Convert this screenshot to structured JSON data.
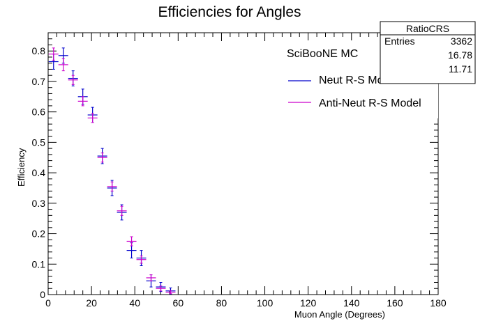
{
  "chart_data": {
    "type": "scatter",
    "title": "Efficiencies for Angles",
    "xlabel": "Muon Angle (Degrees)",
    "ylabel": "Efficiency",
    "xlim": [
      0,
      180
    ],
    "ylim": [
      0,
      0.86
    ],
    "xticks": [
      0,
      20,
      40,
      60,
      80,
      100,
      120,
      140,
      160,
      180
    ],
    "yticks": [
      0,
      0.1,
      0.2,
      0.3,
      0.4,
      0.5,
      0.6,
      0.7,
      0.8
    ],
    "ytick_labels": [
      "0",
      "0.1",
      "0.2",
      "0.3",
      "0.4",
      "0.5",
      "0.6",
      "0.7",
      "0.8"
    ],
    "grid": false,
    "legend_position": "top-right",
    "legend": {
      "header": "SciBooNE MC",
      "entries": [
        "Neut R-S Model",
        "Anti-Neut R-S Model"
      ]
    },
    "stats_box": {
      "title": "RatioCRS",
      "rows": [
        {
          "label": "Entries",
          "value": "3362"
        },
        {
          "label": "",
          "value": "16.78"
        },
        {
          "label": "",
          "value": "11.71"
        }
      ]
    },
    "series": [
      {
        "name": "Neut R-S Model",
        "color": "#0000cc",
        "x": [
          2.5,
          7,
          11.5,
          16,
          20.5,
          25,
          29.5,
          34,
          38.5,
          43,
          47.5,
          52,
          56.5
        ],
        "xerr": 2.25,
        "y": [
          0.765,
          0.785,
          0.71,
          0.65,
          0.59,
          0.455,
          0.35,
          0.27,
          0.145,
          0.12,
          0.045,
          0.025,
          0.012
        ],
        "yerr": [
          0.025,
          0.025,
          0.025,
          0.025,
          0.025,
          0.025,
          0.025,
          0.025,
          0.025,
          0.025,
          0.02,
          0.015,
          0.01
        ]
      },
      {
        "name": "Anti-Neut R-S Model",
        "color": "#cc00cc",
        "x": [
          2.5,
          7,
          11.5,
          16,
          20.5,
          25,
          29.5,
          34,
          38.5,
          43,
          47.5,
          52,
          56.5
        ],
        "xerr": 2.25,
        "y": [
          0.79,
          0.755,
          0.705,
          0.635,
          0.58,
          0.45,
          0.355,
          0.275,
          0.175,
          0.115,
          0.055,
          0.02,
          0.008
        ],
        "yerr": [
          0.02,
          0.02,
          0.015,
          0.015,
          0.015,
          0.015,
          0.015,
          0.015,
          0.015,
          0.012,
          0.01,
          0.008,
          0.005
        ]
      }
    ]
  }
}
